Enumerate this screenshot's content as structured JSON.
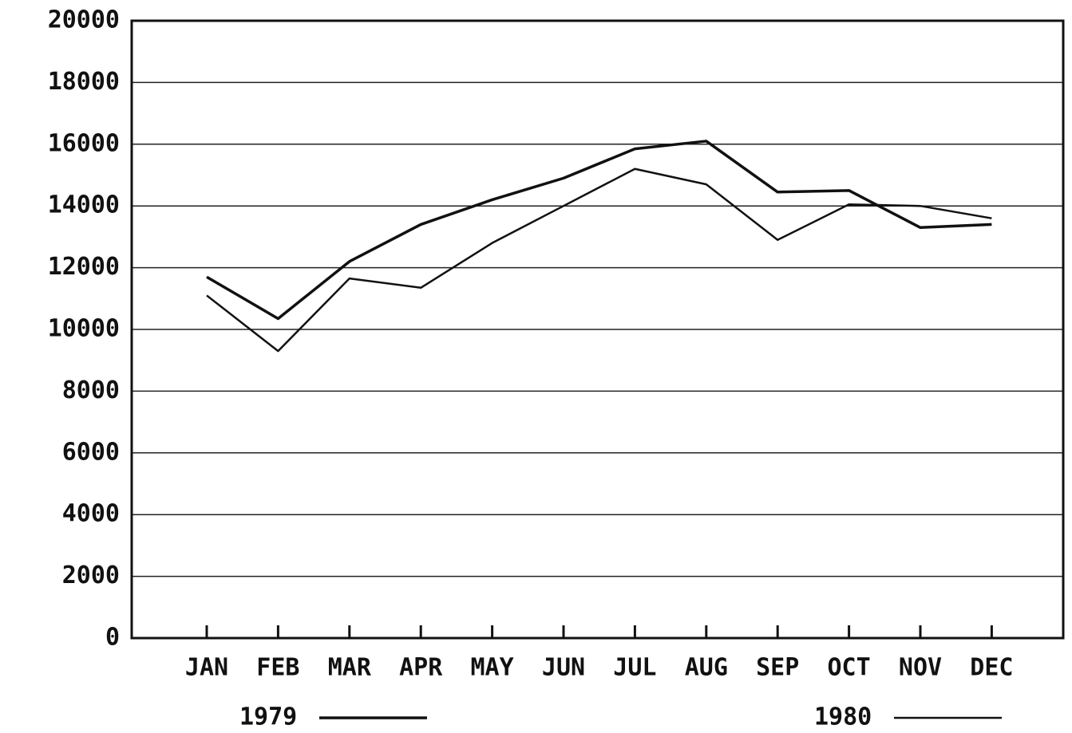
{
  "chart_data": {
    "type": "line",
    "categories": [
      "JAN",
      "FEB",
      "MAR",
      "APR",
      "MAY",
      "JUN",
      "JUL",
      "AUG",
      "SEP",
      "OCT",
      "NOV",
      "DEC"
    ],
    "series": [
      {
        "name": "1979",
        "color": "#111111",
        "width": 3.5,
        "values": [
          11700,
          10350,
          12200,
          13400,
          14200,
          14900,
          15850,
          16100,
          14450,
          14500,
          13300,
          13400
        ]
      },
      {
        "name": "1980",
        "color": "#111111",
        "width": 2.5,
        "values": [
          11100,
          9300,
          11650,
          11350,
          12800,
          14000,
          15200,
          14700,
          12900,
          14050,
          14000,
          13600
        ]
      }
    ],
    "ylim": [
      0,
      20000
    ],
    "yticks": [
      0,
      2000,
      4000,
      6000,
      8000,
      10000,
      12000,
      14000,
      16000,
      18000,
      20000
    ],
    "grid": true
  }
}
